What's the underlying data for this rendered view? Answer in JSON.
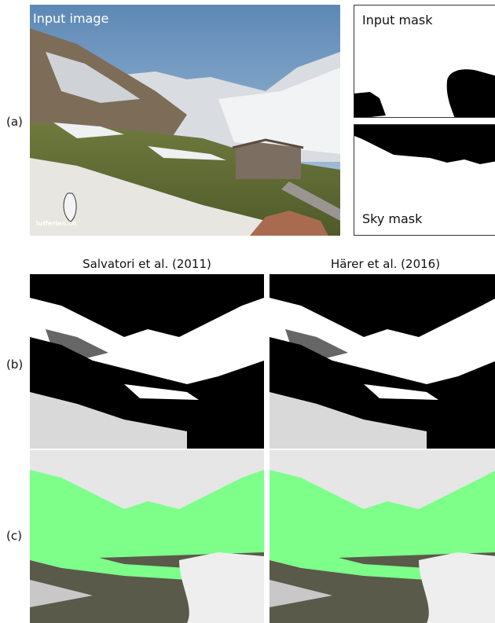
{
  "rows": {
    "a": "(a)",
    "b": "(b)",
    "c": "(c)"
  },
  "panels": {
    "input_image": {
      "label": "Input image"
    },
    "input_mask": {
      "label": "Input mask"
    },
    "sky_mask": {
      "label": "Sky mask"
    }
  },
  "columns": {
    "left_title": "Salvatori et al. (2011)",
    "right_title": "Härer et al. (2016)"
  },
  "watermark": "lufferien.ch",
  "colors": {
    "snow_detected": "#ffffff",
    "background": "#000000",
    "green_overlay": "#7dff8a",
    "sky_overlay": "#e6e6e6"
  }
}
